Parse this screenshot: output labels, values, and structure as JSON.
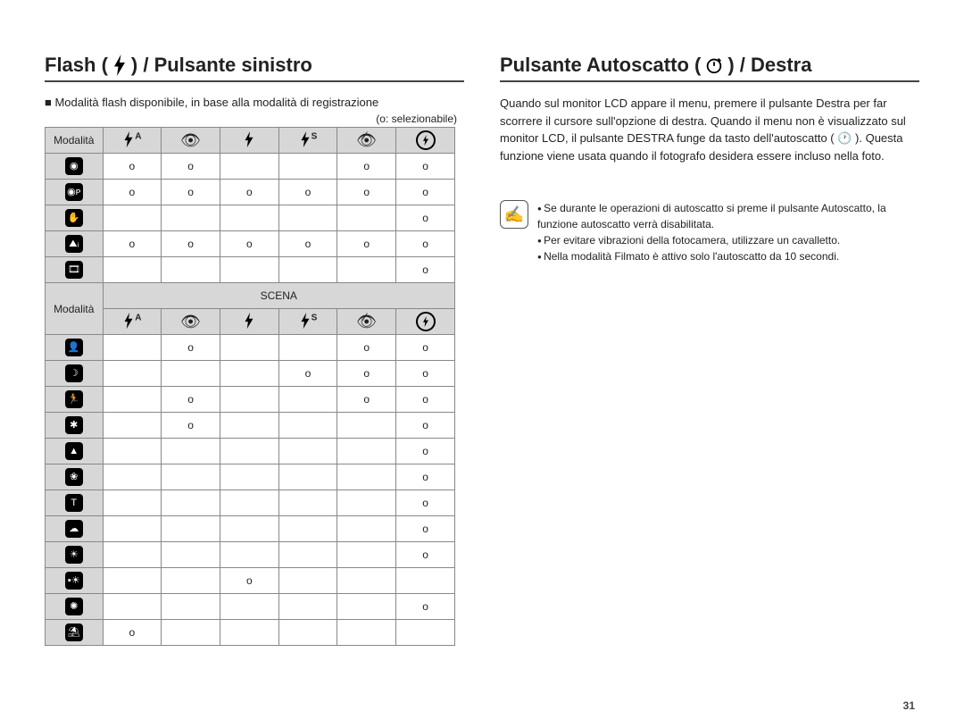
{
  "left": {
    "title_pre": "Flash (",
    "title_post": ") / Pulsante sinistro",
    "intro": "Modalità flash disponibile, in base alla modalità di registrazione",
    "legend": "(o: selezionabile)",
    "header_label": "Modalità",
    "scena_label": "SCENA",
    "col_icons": [
      "flash-auto",
      "eye",
      "flash",
      "flash-s",
      "eye-slash",
      "no-flash"
    ],
    "rows_top": [
      {
        "icon": "camera",
        "cells": [
          "o",
          "o",
          "",
          "",
          "o",
          "o"
        ]
      },
      {
        "icon": "camera-p",
        "cells": [
          "o",
          "o",
          "o",
          "o",
          "o",
          "o"
        ]
      },
      {
        "icon": "hand",
        "cells": [
          "",
          "",
          "",
          "",
          "",
          "o"
        ]
      },
      {
        "icon": "camera-f",
        "cells": [
          "o",
          "o",
          "o",
          "o",
          "o",
          "o"
        ]
      },
      {
        "icon": "film",
        "cells": [
          "",
          "",
          "",
          "",
          "",
          "o"
        ]
      }
    ],
    "rows_scene": [
      {
        "icon": "portrait",
        "cells": [
          "",
          "o",
          "",
          "",
          "o",
          "o"
        ]
      },
      {
        "icon": "night",
        "cells": [
          "",
          "",
          "",
          "o",
          "o",
          "o"
        ]
      },
      {
        "icon": "children",
        "cells": [
          "",
          "o",
          "",
          "",
          "o",
          "o"
        ]
      },
      {
        "icon": "landscape1",
        "cells": [
          "",
          "o",
          "",
          "",
          "",
          "o"
        ]
      },
      {
        "icon": "landscape2",
        "cells": [
          "",
          "",
          "",
          "",
          "",
          "o"
        ]
      },
      {
        "icon": "closeup",
        "cells": [
          "",
          "",
          "",
          "",
          "",
          "o"
        ]
      },
      {
        "icon": "text",
        "cells": [
          "",
          "",
          "",
          "",
          "",
          "o"
        ]
      },
      {
        "icon": "sunset",
        "cells": [
          "",
          "",
          "",
          "",
          "",
          "o"
        ]
      },
      {
        "icon": "dawn",
        "cells": [
          "",
          "",
          "",
          "",
          "",
          "o"
        ]
      },
      {
        "icon": "backlight",
        "cells": [
          "",
          "",
          "o",
          "",
          "",
          ""
        ]
      },
      {
        "icon": "fireworks",
        "cells": [
          "",
          "",
          "",
          "",
          "",
          "o"
        ]
      },
      {
        "icon": "beach",
        "cells": [
          "o",
          "",
          "",
          "",
          "",
          ""
        ]
      }
    ]
  },
  "right": {
    "title_pre": "Pulsante Autoscatto (",
    "title_post": ") / Destra",
    "para": "Quando sul monitor LCD appare il menu, premere il pulsante Destra per far scorrere il cursore sull'opzione di destra. Quando il menu non è visualizzato sul monitor LCD, il pulsante DESTRA funge da tasto dell'autoscatto ( 🕐 ). Questa funzione viene usata quando il fotografo desidera essere incluso nella foto.",
    "notes": [
      "Se durante le operazioni di autoscatto si preme il pulsante Autoscatto, la funzione autoscatto verrà disabilitata.",
      "Per evitare vibrazioni della fotocamera, utilizzare un cavalletto.",
      "Nella modalità Filmato è attivo solo l'autoscatto da 10 secondi."
    ]
  },
  "page_number": "31",
  "mode_glyphs": {
    "camera": "◉",
    "camera-p": "◉ᴘ",
    "hand": "✋",
    "camera-f": "⛰ᵢ",
    "film": "🎞",
    "portrait": "👤",
    "night": "☽",
    "children": "🏃",
    "landscape1": "✱",
    "landscape2": "▲",
    "closeup": "❀",
    "text": "T",
    "sunset": "☁",
    "dawn": "☀",
    "backlight": "▪☀",
    "fireworks": "✺",
    "beach": "⛱"
  },
  "header_glyphs_html": {
    "flash-auto": "<svg class='flash' viewBox='0 0 10 16'><path d='M6 0 L1 9 L4 9 L3 16 L9 6 L5 6 Z' fill='#000'/></svg><span style='font-size:10px;font-weight:bold;vertical-align:super'>A</span>",
    "eye": "<span style='font-size:18px'>👁</span>",
    "flash": "<svg class='flash' viewBox='0 0 10 16'><path d='M6 0 L1 9 L4 9 L3 16 L9 6 L5 6 Z' fill='#000'/></svg>",
    "flash-s": "<svg class='flash' viewBox='0 0 10 16'><path d='M6 0 L1 9 L4 9 L3 16 L9 6 L5 6 Z' fill='#000'/></svg><span style='font-size:10px;font-weight:bold;vertical-align:super'>S</span>",
    "eye-slash": "<span style='font-size:18px;position:relative'>👁<span style='position:absolute;left:9px;top:-2px;font-size:12px'>⁄</span></span>",
    "no-flash": "<span style='display:inline-flex;width:18px;height:18px;border:2px solid #000;border-radius:50%;align-items:center;justify-content:center'><svg class='flash' style='width:8px;height:12px' viewBox='0 0 10 16'><path d='M6 0 L1 9 L4 9 L3 16 L9 6 L5 6 Z' fill='#000'/></svg></span>"
  }
}
